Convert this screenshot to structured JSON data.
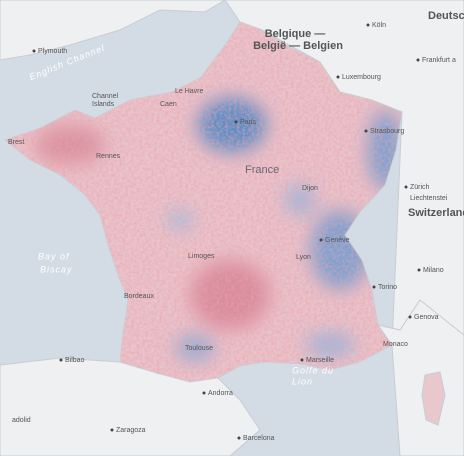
{
  "labels": [
    "Deutschl",
    "Belgique —",
    "België — Belgien",
    "Köln",
    "Frankfurt a",
    "Plymouth",
    "English Channel",
    "Channel",
    "Islands",
    "Caen",
    "Le Havre",
    "Paris",
    "Luxembourg",
    "Strasbourg",
    "Brest",
    "Rennes",
    "France",
    "Dijon",
    "Zürich",
    "Liechtenstei",
    "Switzerland",
    "Bay of",
    "Biscay",
    "Limoges",
    "Genève",
    "Lyon",
    "Milano",
    "Torino",
    "Bordeaux",
    "Genova",
    "Monaco",
    "Toulouse",
    "Marseille",
    "Golfe du",
    "Lion",
    "Bilbao",
    "Andorra",
    "Zaragoza",
    "Barcelona",
    "adolid"
  ]
}
